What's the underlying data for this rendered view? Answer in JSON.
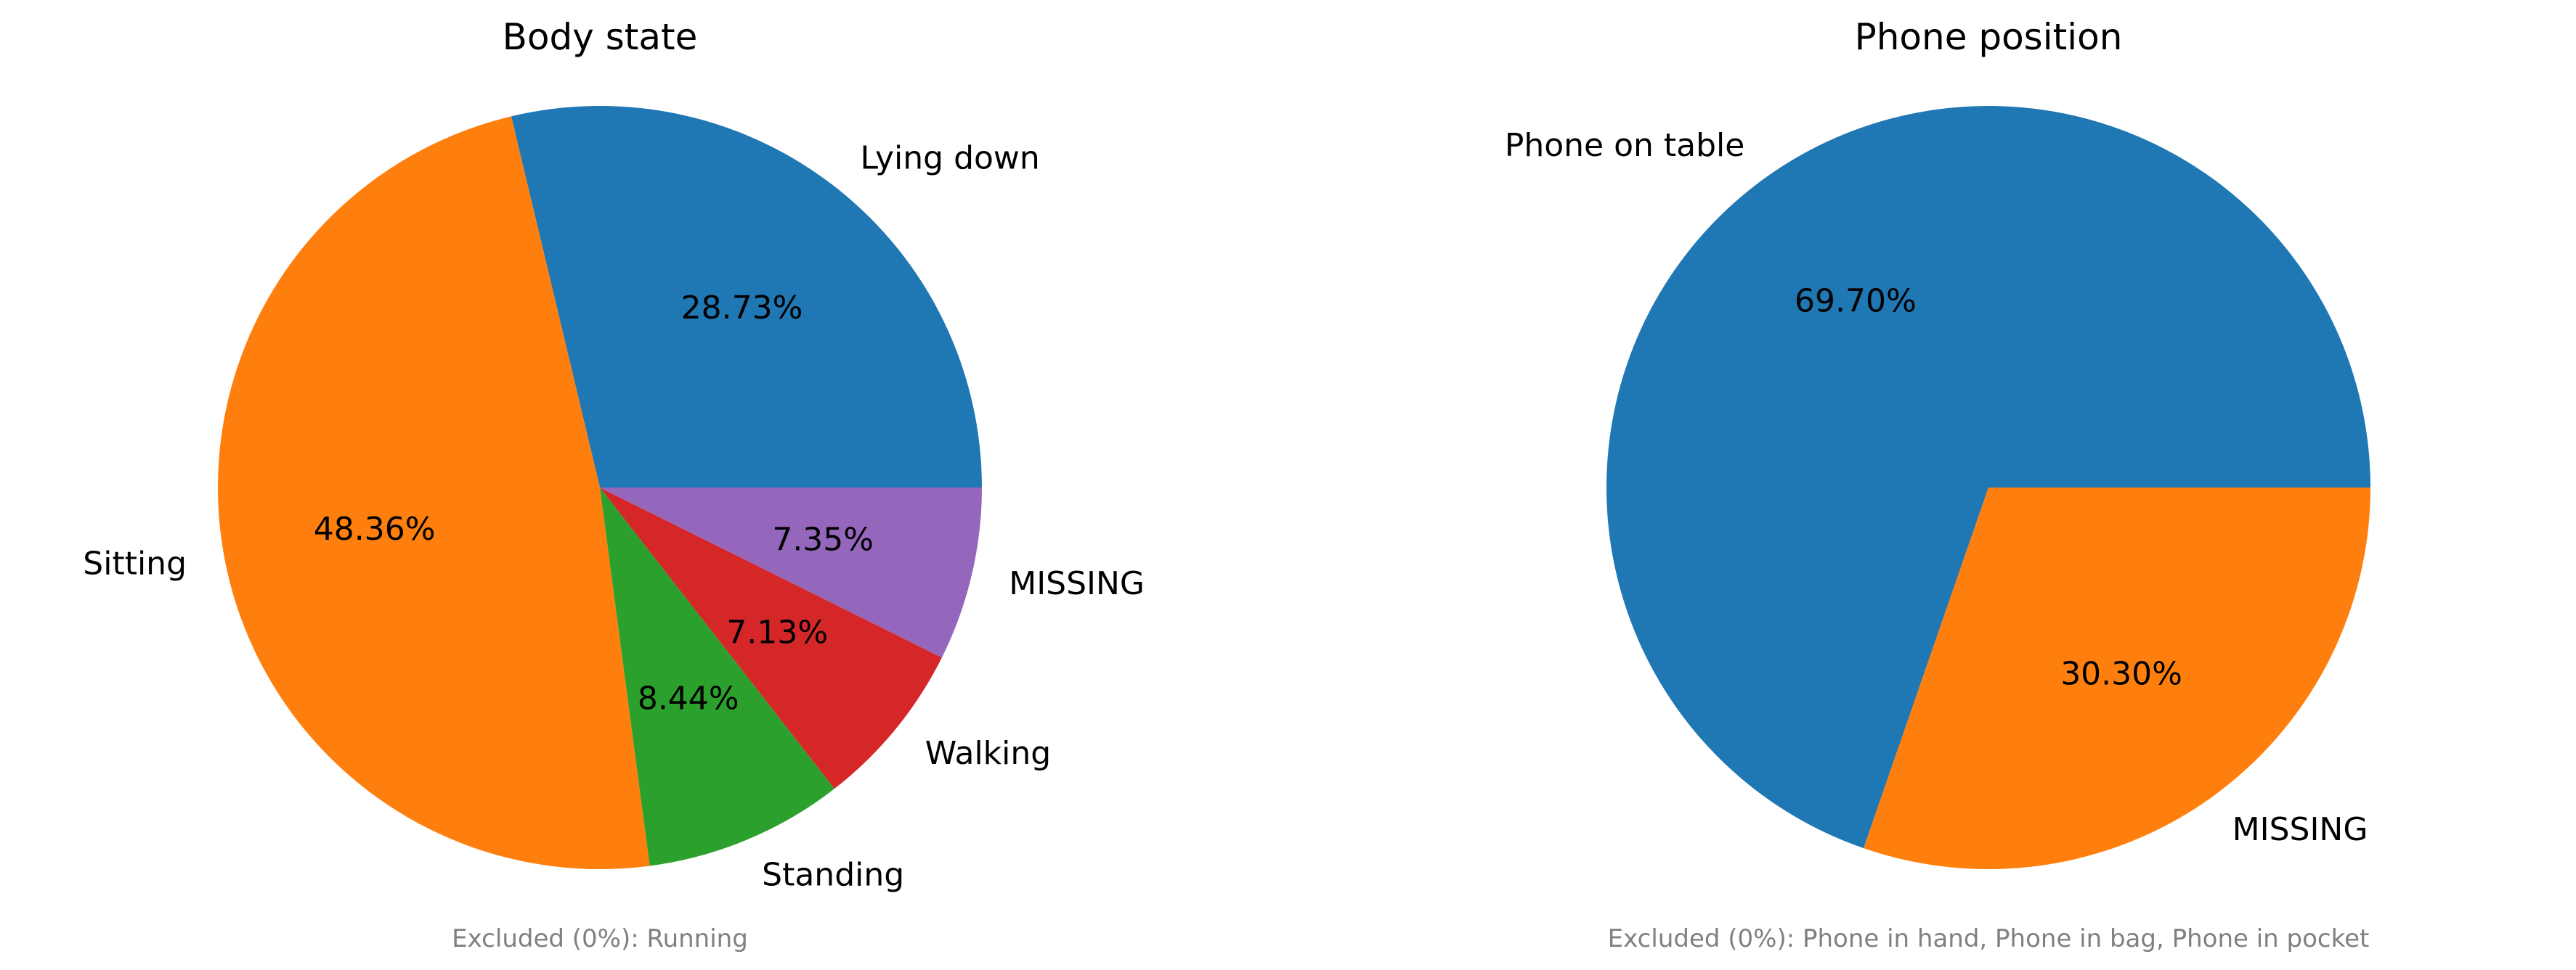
{
  "chart_data": [
    {
      "type": "pie",
      "title": "Body state",
      "slices": [
        {
          "label": "Lying down",
          "value": 28.73,
          "pct_label": "28.73%",
          "color": "#1f77b4"
        },
        {
          "label": "Sitting",
          "value": 48.36,
          "pct_label": "48.36%",
          "color": "#ff7f0e"
        },
        {
          "label": "Standing",
          "value": 8.44,
          "pct_label": "8.44%",
          "color": "#2ca02c"
        },
        {
          "label": "Walking",
          "value": 7.13,
          "pct_label": "7.13%",
          "color": "#d62728"
        },
        {
          "label": "MISSING",
          "value": 7.35,
          "pct_label": "7.35%",
          "color": "#9467bd"
        }
      ],
      "note": "Excluded (0%): Running"
    },
    {
      "type": "pie",
      "title": "Phone position",
      "slices": [
        {
          "label": "Phone on table",
          "value": 69.7,
          "pct_label": "69.70%",
          "color": "#1f77b4"
        },
        {
          "label": "MISSING",
          "value": 30.3,
          "pct_label": "30.30%",
          "color": "#ff7f0e"
        }
      ],
      "note": "Excluded (0%): Phone in hand, Phone in bag, Phone in pocket"
    }
  ]
}
